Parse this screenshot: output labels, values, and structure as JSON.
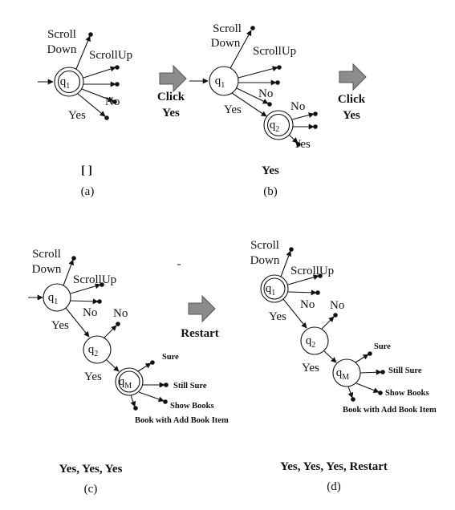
{
  "colors": {
    "ink": "#111111",
    "arrow_fill": "#8c8c8c",
    "arrow_stroke": "#555555"
  },
  "panels": {
    "a": {
      "caption": "(a)",
      "sequence": "[ ]",
      "states": {
        "q1": {
          "main": "q",
          "sub": "1"
        }
      },
      "labels": {
        "scroll_down_1": "Scroll",
        "scroll_down_2": "Down",
        "scroll_up": "ScrollUp",
        "no": "No",
        "yes": "Yes"
      }
    },
    "b": {
      "caption": "(b)",
      "sequence": "Yes",
      "states": {
        "q1": {
          "main": "q",
          "sub": "1"
        },
        "q2": {
          "main": "q",
          "sub": "2"
        }
      },
      "labels": {
        "scroll_down_1": "Scroll",
        "scroll_down_2": "Down",
        "scroll_up": "ScrollUp",
        "no_q1": "No",
        "yes": "Yes",
        "no_q2": "No",
        "yes_q2": "Yes"
      }
    },
    "c": {
      "caption": "(c)",
      "sequence": "Yes, Yes, Yes",
      "states": {
        "q1": {
          "main": "q",
          "sub": "1"
        },
        "q2": {
          "main": "q",
          "sub": "2"
        },
        "qM": {
          "main": "q",
          "sub": "M"
        }
      },
      "labels": {
        "scroll_down_1": "Scroll",
        "scroll_down_2": "Down",
        "scroll_up": "ScrollUp",
        "no_q1": "No",
        "yes": "Yes",
        "no_q2": "No",
        "yes_q2": "Yes",
        "sure": "Sure",
        "still_sure": "Still Sure",
        "show_books": "Show Books",
        "book_add": "Book with Add Book Item"
      }
    },
    "d": {
      "caption": "(d)",
      "sequence": "Yes, Yes, Yes, Restart",
      "states": {
        "q1": {
          "main": "q",
          "sub": "1"
        },
        "q2": {
          "main": "q",
          "sub": "2"
        },
        "qM": {
          "main": "q",
          "sub": "M"
        }
      },
      "labels": {
        "scroll_down_1": "Scroll",
        "scroll_down_2": "Down",
        "scroll_up": "ScrollUp",
        "no_q1": "No",
        "yes": "Yes",
        "no_q2": "No",
        "yes_q2": "Yes",
        "sure": "Sure",
        "still_sure": "Still Sure",
        "show_books": "Show Books",
        "book_add": "Book with Add Book Item"
      }
    }
  },
  "actions": {
    "a_to_b": {
      "line1": "Click",
      "line2": "Yes"
    },
    "b_to_next": {
      "line1": "Click",
      "line2": "Yes"
    },
    "c_to_d": {
      "line1": "Restart"
    }
  }
}
